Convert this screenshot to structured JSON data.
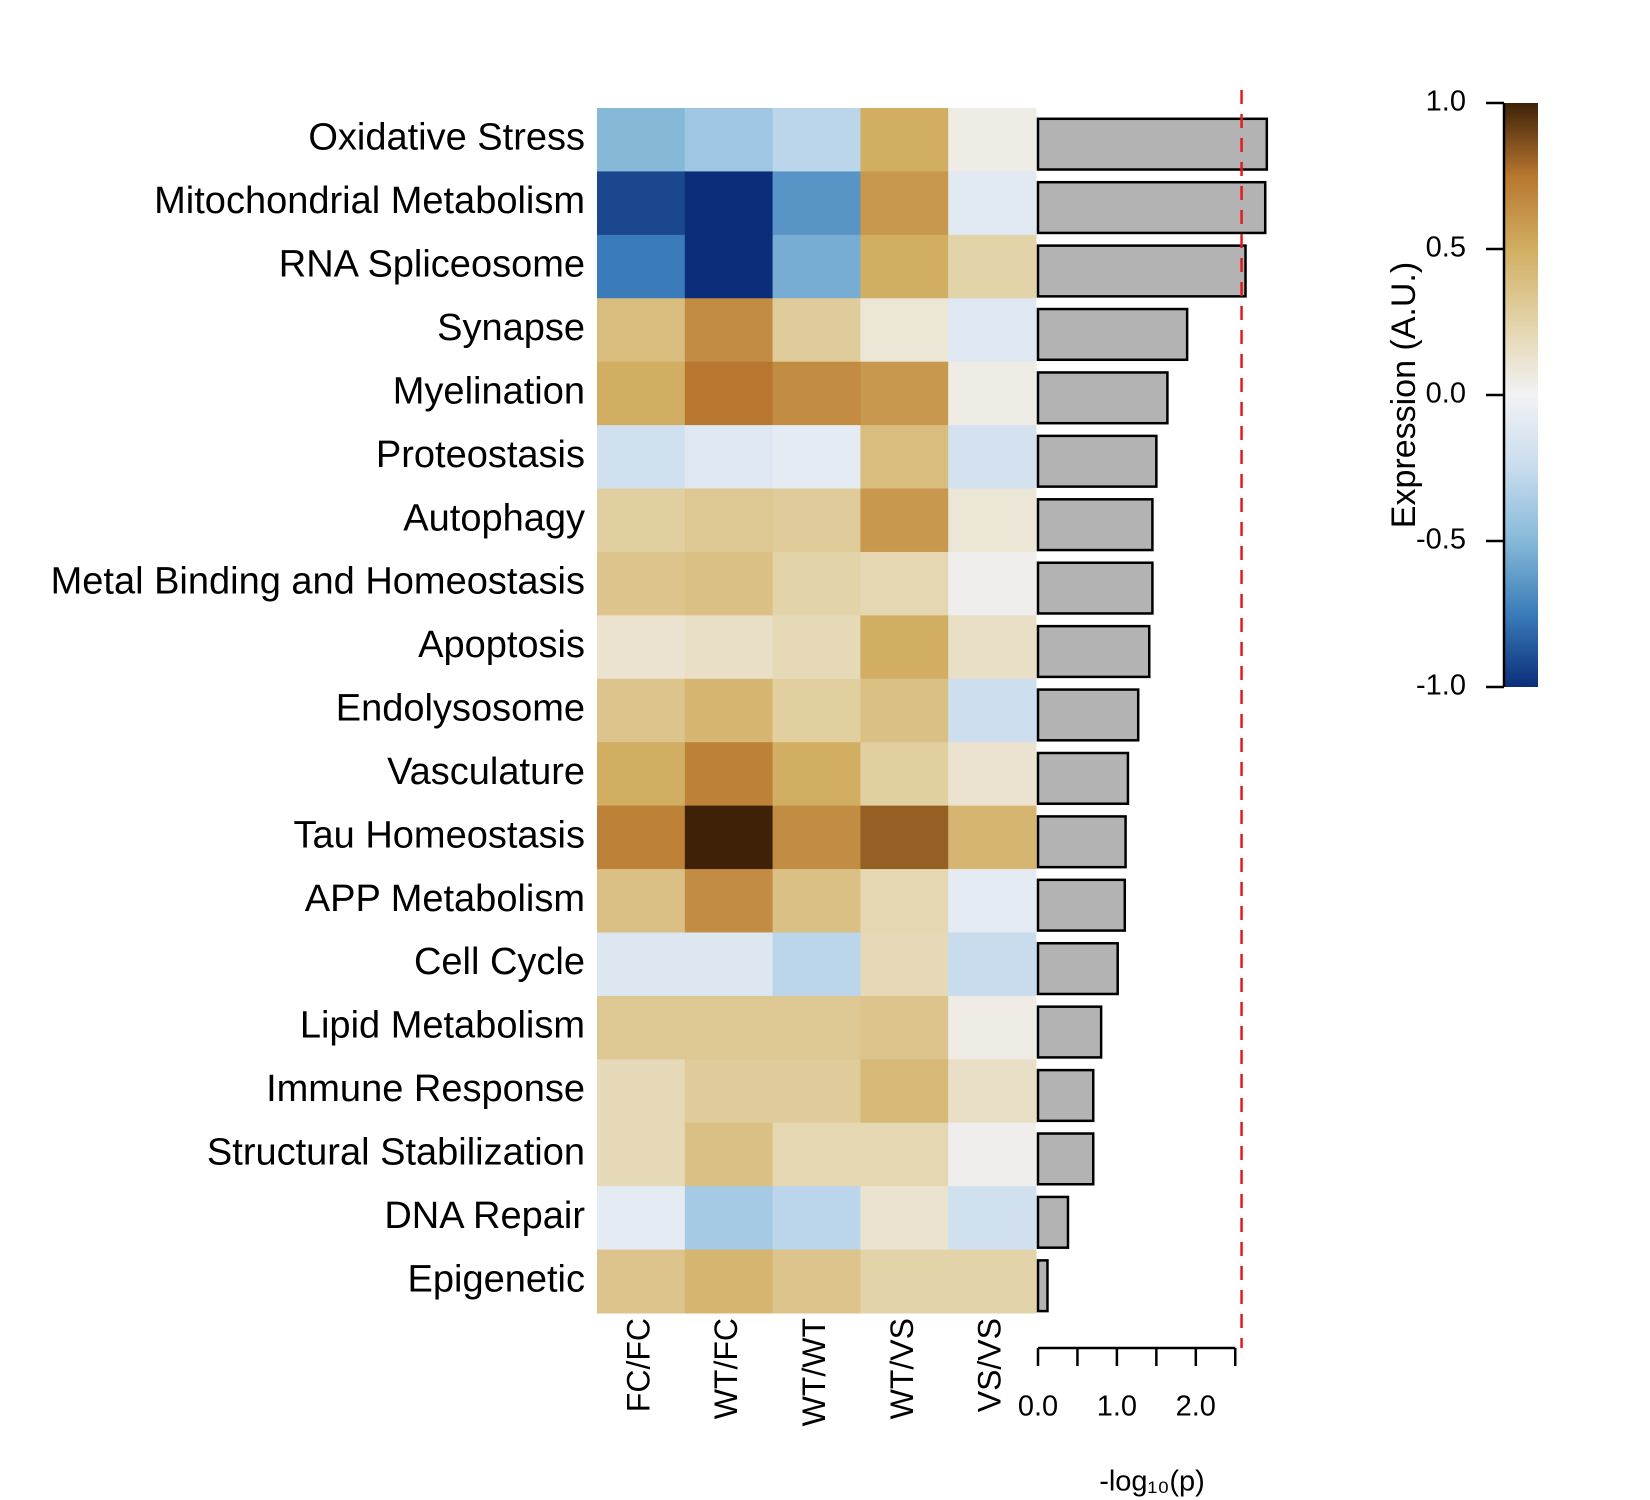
{
  "chart_data": {
    "type": "heatmap",
    "rows": [
      "Oxidative Stress",
      "Mitochondrial Metabolism",
      "RNA Spliceosome",
      "Synapse",
      "Myelination",
      "Proteostasis",
      "Autophagy",
      "Metal Binding and Homeostasis",
      "Apoptosis",
      "Endolysosome",
      "Vasculature",
      "Tau Homeostasis",
      "APP Metabolism",
      "Cell Cycle",
      "Lipid Metabolism",
      "Immune Response",
      "Structural Stabilization",
      "DNA Repair",
      "Epigenetic"
    ],
    "columns": [
      "FC/FC",
      "WT/FC",
      "WT/WT",
      "WT/VS",
      "VS/VS"
    ],
    "values": [
      [
        -0.5,
        -0.4,
        -0.3,
        0.5,
        0.05
      ],
      [
        -0.92,
        -1.0,
        -0.65,
        0.6,
        -0.1
      ],
      [
        -0.75,
        -1.0,
        -0.55,
        0.5,
        0.25
      ],
      [
        0.4,
        0.65,
        0.3,
        0.1,
        -0.12
      ],
      [
        0.5,
        0.75,
        0.65,
        0.6,
        0.05
      ],
      [
        -0.2,
        -0.12,
        -0.08,
        0.4,
        -0.18
      ],
      [
        0.28,
        0.33,
        0.3,
        0.6,
        0.1
      ],
      [
        0.35,
        0.38,
        0.25,
        0.22,
        0.03
      ],
      [
        0.12,
        0.15,
        0.2,
        0.5,
        0.15
      ],
      [
        0.35,
        0.45,
        0.28,
        0.38,
        -0.22
      ],
      [
        0.5,
        0.7,
        0.5,
        0.28,
        0.12
      ],
      [
        0.7,
        1.0,
        0.65,
        0.82,
        0.45
      ],
      [
        0.38,
        0.65,
        0.38,
        0.22,
        -0.08
      ],
      [
        -0.13,
        -0.13,
        -0.3,
        0.2,
        -0.25
      ],
      [
        0.33,
        0.33,
        0.33,
        0.35,
        0.05
      ],
      [
        0.2,
        0.3,
        0.3,
        0.42,
        0.15
      ],
      [
        0.2,
        0.38,
        0.22,
        0.22,
        0.03
      ],
      [
        -0.08,
        -0.38,
        -0.3,
        0.12,
        -0.2
      ],
      [
        0.35,
        0.45,
        0.35,
        0.25,
        0.25
      ]
    ],
    "colormap": [
      [
        -1,
        "#0b2e7a"
      ],
      [
        -0.75,
        "#3a7cb9"
      ],
      [
        -0.5,
        "#86b9d8"
      ],
      [
        -0.25,
        "#c8dcee"
      ],
      [
        0,
        "#f2f2f5"
      ],
      [
        0.25,
        "#e3d3a8"
      ],
      [
        0.5,
        "#d1ae62"
      ],
      [
        0.75,
        "#b8772e"
      ],
      [
        1,
        "#3e2208"
      ]
    ],
    "colorbar": {
      "title": "Expression (A.U.)",
      "ylim": [
        -1,
        1
      ],
      "yticks": [
        {
          "value": 1,
          "label": "1.0"
        },
        {
          "value": 0.5,
          "label": "0.5"
        },
        {
          "value": 0,
          "label": "0.0"
        },
        {
          "value": -0.5,
          "label": "-0.5"
        },
        {
          "value": -1,
          "label": "-1.0"
        }
      ]
    },
    "bars": {
      "xlabel": "-log₁₀(p)",
      "color": "#b3b3b3",
      "values": [
        2.9,
        2.88,
        2.63,
        1.89,
        1.64,
        1.5,
        1.45,
        1.45,
        1.41,
        1.27,
        1.14,
        1.11,
        1.1,
        1.01,
        0.8,
        0.7,
        0.7,
        0.38,
        0.12
      ],
      "xlim": [
        0,
        2.5
      ],
      "xticks": [
        {
          "value": 0,
          "label": "0.0"
        },
        {
          "value": 1,
          "label": "1.0"
        },
        {
          "value": 2,
          "label": "2.0"
        }
      ],
      "xminorticks": [
        0.5,
        1.5,
        2.5
      ],
      "threshold": 2.58,
      "threshold_color": "#e41a1c"
    }
  }
}
